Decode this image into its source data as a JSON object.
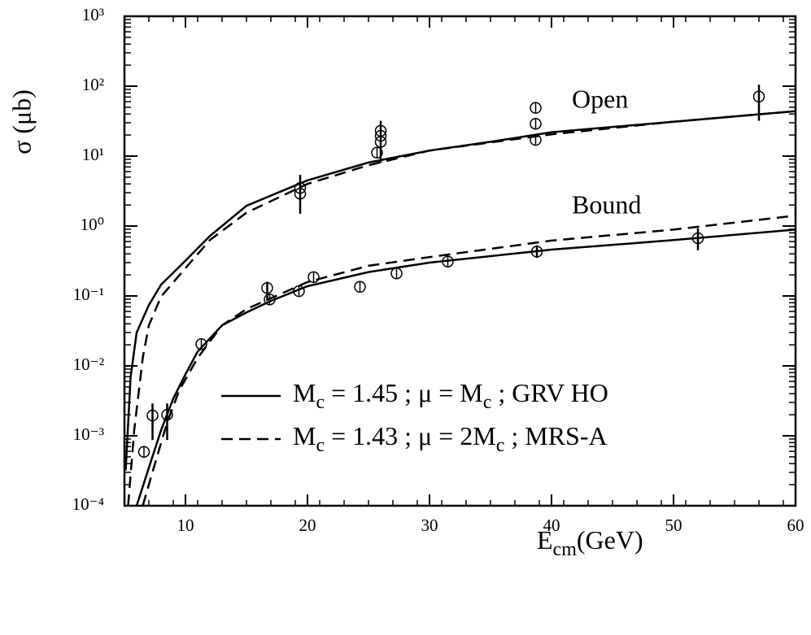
{
  "chart_data": {
    "type": "line",
    "y_label": "σ (μb)",
    "x_label": [
      "E",
      "cm",
      "(GeV)"
    ],
    "log_y": true,
    "minor_ticks": true,
    "mirror_ticks": true,
    "xlim": [
      5,
      60
    ],
    "xticks": [
      10,
      20,
      30,
      40,
      50,
      60
    ],
    "xminor_step": 2,
    "ylim": [
      0.0001,
      1000
    ],
    "yticks": [
      {
        "value": 0.0001,
        "label": "10⁻⁴"
      },
      {
        "value": 0.001,
        "label": "10⁻³"
      },
      {
        "value": 0.01,
        "label": "10⁻²"
      },
      {
        "value": 0.1,
        "label": "10⁻¹"
      },
      {
        "value": 1,
        "label": "10⁰"
      },
      {
        "value": 10,
        "label": "10¹"
      },
      {
        "value": 100,
        "label": "10²"
      },
      {
        "value": 1000,
        "label": "10³"
      }
    ],
    "annotations": [
      "Open",
      "Bound"
    ],
    "color": "#000000",
    "curves": [
      {
        "name": [
          "M",
          "c",
          " = 1.45 ;   μ = M",
          "c",
          " ;   GRV HO"
        ],
        "dashed": false,
        "lines": [
          {
            "x": [
              5.1,
              5.5,
              6,
              7,
              8,
              10,
              12,
              15,
              20,
              25,
              30,
              35,
              40,
              50,
              60
            ],
            "values": [
              0.00032,
              0.0068,
              0.03,
              0.074,
              0.145,
              0.32,
              0.72,
              1.95,
              4.5,
              8.1,
              12,
              16,
              22,
              31,
              44
            ]
          },
          {
            "x": [
              6,
              7,
              8,
              9,
              10,
              11,
              13,
              15,
              17,
              20,
              25,
              30,
              40,
              50,
              60
            ],
            "values": [
              0.0001,
              0.00035,
              0.0012,
              0.0034,
              0.0076,
              0.016,
              0.038,
              0.058,
              0.085,
              0.138,
              0.22,
              0.3,
              0.46,
              0.63,
              0.89
            ]
          }
        ]
      },
      {
        "name": [
          "M",
          "c",
          " = 1.43 ;   μ = 2M",
          "c",
          " ;   MRS-A"
        ],
        "dashed": true,
        "lines": [
          {
            "x": [
              5.3,
              5.8,
              6.5,
              7,
              8,
              10,
              12,
              15,
              20,
              25,
              30,
              40,
              50,
              60
            ],
            "values": [
              0.0001,
              0.0012,
              0.013,
              0.038,
              0.098,
              0.25,
              0.63,
              1.55,
              4.0,
              7.4,
              12,
              20.5,
              31,
              44
            ]
          },
          {
            "x": [
              6.5,
              7.5,
              8.5,
              9.5,
              11,
              13,
              15,
              20,
              25,
              30,
              40,
              50,
              60
            ],
            "values": [
              0.0001,
              0.0004,
              0.00155,
              0.0045,
              0.013,
              0.038,
              0.065,
              0.158,
              0.27,
              0.36,
              0.62,
              0.89,
              1.41
            ]
          }
        ]
      }
    ],
    "points": [
      {
        "x": 19.4,
        "y": 3.5,
        "err": [
          1.5,
          5.4
        ]
      },
      {
        "x": 19.4,
        "y": 2.9
      },
      {
        "x": 25.7,
        "y": 11.2
      },
      {
        "x": 26.0,
        "y": 23,
        "err": [
          8,
          32
        ]
      },
      {
        "x": 26.0,
        "y": 19.5
      },
      {
        "x": 26.0,
        "y": 16
      },
      {
        "x": 38.7,
        "y": 49
      },
      {
        "x": 38.7,
        "y": 29
      },
      {
        "x": 38.7,
        "y": 17
      },
      {
        "x": 57,
        "y": 71,
        "err": [
          32,
          105
        ]
      },
      {
        "x": 6.6,
        "y": 0.00059
      },
      {
        "x": 7.3,
        "y": 0.00195,
        "err": [
          0.00087,
          0.0029
        ]
      },
      {
        "x": 8.5,
        "y": 0.002,
        "err": [
          0.00087,
          0.0029
        ]
      },
      {
        "x": 11.3,
        "y": 0.0205
      },
      {
        "x": 16.7,
        "y": 0.13,
        "err": [
          0.085,
          0.16
        ]
      },
      {
        "x": 16.9,
        "y": 0.089
      },
      {
        "x": 19.3,
        "y": 0.117
      },
      {
        "x": 20.5,
        "y": 0.186
      },
      {
        "x": 24.3,
        "y": 0.135
      },
      {
        "x": 27.3,
        "y": 0.21
      },
      {
        "x": 31.5,
        "y": 0.31
      },
      {
        "x": 38.8,
        "y": 0.43,
        "err": [
          0.35,
          0.53
        ]
      },
      {
        "x": 52,
        "y": 0.67,
        "err": [
          0.45,
          0.93
        ]
      }
    ]
  }
}
